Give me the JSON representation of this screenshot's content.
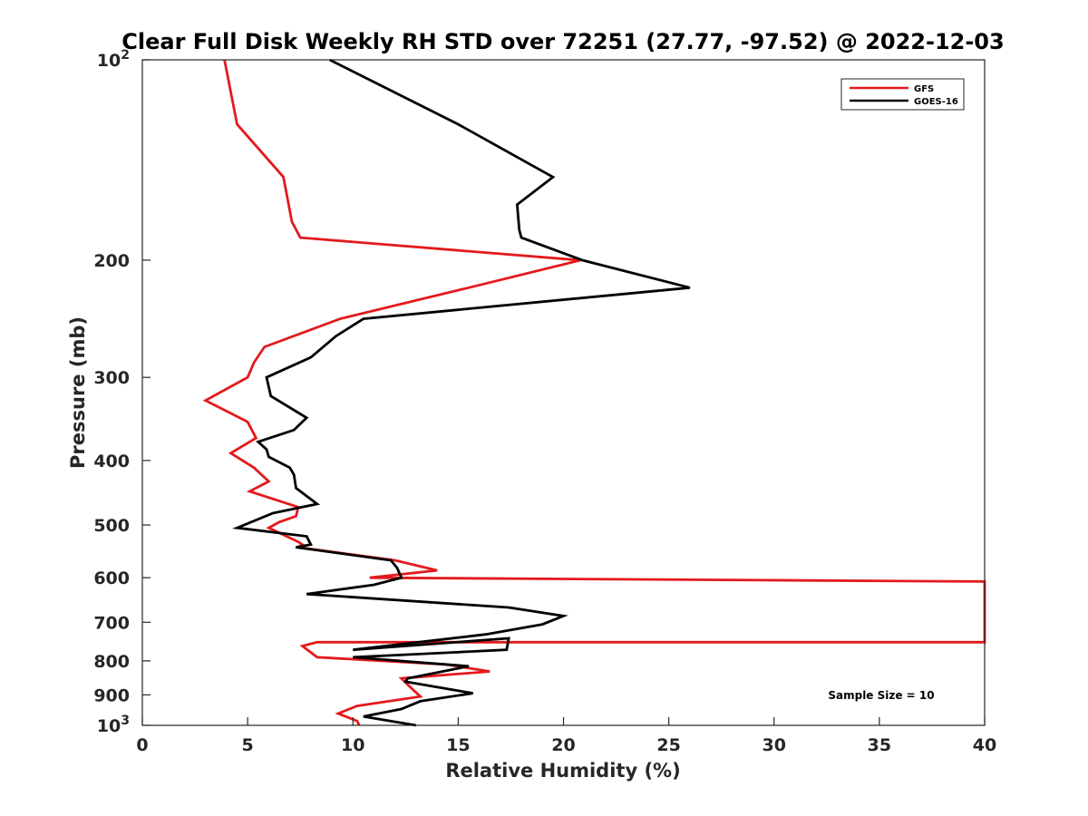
{
  "chart_data": {
    "type": "line",
    "title": "Clear Full Disk Weekly RH STD over 72251 (27.77, -97.52) @ 2022-12-03",
    "xlabel": "Relative Humidity (%)",
    "ylabel": "Pressure (mb)",
    "xlim": [
      0,
      40
    ],
    "ylim": [
      100,
      1000
    ],
    "y_scale": "log",
    "y_reversed": true,
    "x_ticks": [
      "0",
      "5",
      "10",
      "15",
      "20",
      "25",
      "30",
      "35",
      "40"
    ],
    "y_ticks": [
      {
        "value": 100,
        "label": "10",
        "sup": "2"
      },
      {
        "value": 200,
        "label": "200",
        "sup": ""
      },
      {
        "value": 300,
        "label": "300",
        "sup": ""
      },
      {
        "value": 400,
        "label": "400",
        "sup": ""
      },
      {
        "value": 500,
        "label": "500",
        "sup": ""
      },
      {
        "value": 600,
        "label": "600",
        "sup": ""
      },
      {
        "value": 700,
        "label": "700",
        "sup": ""
      },
      {
        "value": 800,
        "label": "800",
        "sup": ""
      },
      {
        "value": 900,
        "label": "900",
        "sup": ""
      },
      {
        "value": 1000,
        "label": "10",
        "sup": "3"
      }
    ],
    "grid": false,
    "legend_position": "top-right",
    "annotation": "Sample Size = 10",
    "series": [
      {
        "name": "GFS",
        "color": "#e31a1c",
        "points": [
          [
            3.9,
            100
          ],
          [
            4.5,
            125
          ],
          [
            6.7,
            150
          ],
          [
            7.1,
            175
          ],
          [
            7.5,
            185
          ],
          [
            20.8,
            200
          ],
          [
            15.5,
            220
          ],
          [
            9.4,
            245
          ],
          [
            5.8,
            270
          ],
          [
            5.3,
            285
          ],
          [
            5.0,
            300
          ],
          [
            3.0,
            325
          ],
          [
            5.0,
            350
          ],
          [
            5.4,
            370
          ],
          [
            4.2,
            390
          ],
          [
            5.3,
            410
          ],
          [
            6.0,
            430
          ],
          [
            5.1,
            445
          ],
          [
            7.4,
            470
          ],
          [
            7.3,
            485
          ],
          [
            6.5,
            495
          ],
          [
            6.0,
            505
          ],
          [
            7.4,
            530
          ],
          [
            7.6,
            535
          ],
          [
            7.4,
            540
          ],
          [
            12.0,
            565
          ],
          [
            14.0,
            585
          ],
          [
            10.8,
            600
          ],
          [
            40.0,
            608
          ],
          [
            40.0,
            750
          ],
          [
            8.3,
            750
          ],
          [
            7.6,
            760
          ],
          [
            8.3,
            790
          ],
          [
            14.4,
            810
          ],
          [
            16.5,
            830
          ],
          [
            12.3,
            850
          ],
          [
            12.7,
            875
          ],
          [
            13.2,
            905
          ],
          [
            10.2,
            935
          ],
          [
            9.3,
            960
          ],
          [
            10.2,
            985
          ],
          [
            10.3,
            1000
          ]
        ]
      },
      {
        "name": "GOES-16",
        "color": "#000000",
        "points": [
          [
            8.9,
            100
          ],
          [
            15.0,
            125
          ],
          [
            19.5,
            150
          ],
          [
            17.8,
            165
          ],
          [
            17.9,
            180
          ],
          [
            18.0,
            185
          ],
          [
            20.9,
            200
          ],
          [
            26.0,
            220
          ],
          [
            10.5,
            245
          ],
          [
            9.2,
            260
          ],
          [
            8.0,
            280
          ],
          [
            5.9,
            300
          ],
          [
            6.1,
            320
          ],
          [
            7.8,
            345
          ],
          [
            7.2,
            360
          ],
          [
            5.5,
            375
          ],
          [
            5.9,
            385
          ],
          [
            6.0,
            395
          ],
          [
            7.0,
            410
          ],
          [
            7.2,
            420
          ],
          [
            7.3,
            440
          ],
          [
            8.3,
            465
          ],
          [
            6.2,
            480
          ],
          [
            4.5,
            505
          ],
          [
            7.8,
            520
          ],
          [
            8.0,
            535
          ],
          [
            7.3,
            540
          ],
          [
            11.8,
            565
          ],
          [
            12.1,
            580
          ],
          [
            12.3,
            600
          ],
          [
            11.0,
            615
          ],
          [
            7.8,
            635
          ],
          [
            17.4,
            665
          ],
          [
            20.0,
            685
          ],
          [
            19.0,
            705
          ],
          [
            16.3,
            730
          ],
          [
            10.0,
            770
          ],
          [
            17.4,
            740
          ],
          [
            17.3,
            770
          ],
          [
            10.0,
            790
          ],
          [
            15.5,
            815
          ],
          [
            12.6,
            850
          ],
          [
            12.5,
            860
          ],
          [
            15.7,
            895
          ],
          [
            13.2,
            920
          ],
          [
            12.3,
            945
          ],
          [
            10.5,
            970
          ],
          [
            13.0,
            1000
          ]
        ]
      }
    ]
  }
}
